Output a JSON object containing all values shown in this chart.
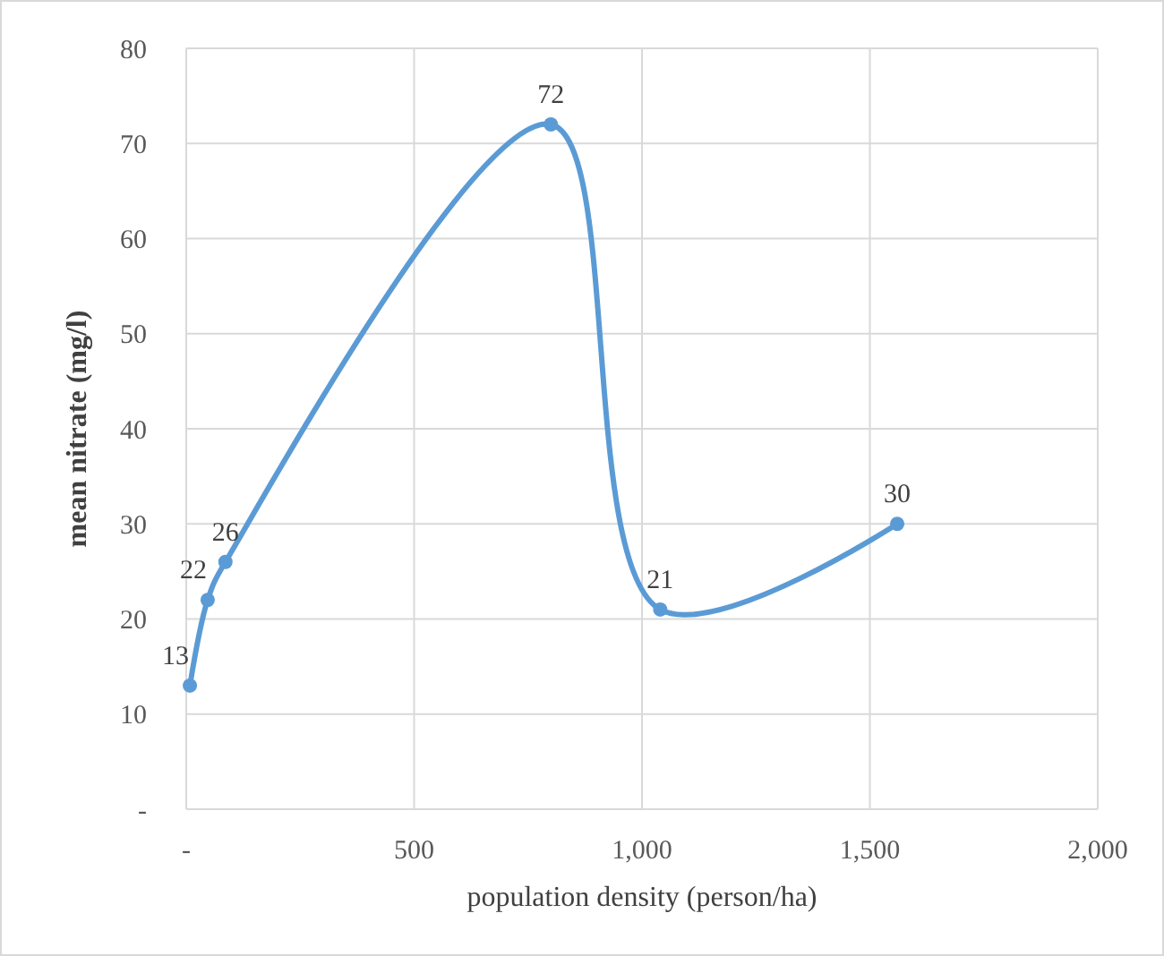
{
  "chart_data": {
    "type": "line",
    "xlabel": "population density (person/ha)",
    "ylabel": "mean nitrate (mg/l)",
    "x": [
      8,
      47,
      86,
      800,
      1040,
      1560
    ],
    "series": [
      {
        "color": "#5b9bd5",
        "values": [
          13,
          22,
          26,
          72,
          21,
          30
        ]
      }
    ],
    "data_labels": true,
    "marker": "circle",
    "line_style": "solid",
    "grid": true,
    "xlim": [
      0,
      2000
    ],
    "xticks": [
      {
        "value": 0,
        "label": "-"
      },
      500,
      {
        "value": 1000,
        "label": "1,000"
      },
      {
        "value": 1500,
        "label": "1,500"
      },
      {
        "value": 2000,
        "label": "2,000"
      }
    ],
    "ylim": [
      0,
      80
    ],
    "yticks": [
      {
        "value": 0,
        "label": "-"
      },
      10,
      20,
      30,
      40,
      50,
      60,
      70,
      80
    ]
  }
}
